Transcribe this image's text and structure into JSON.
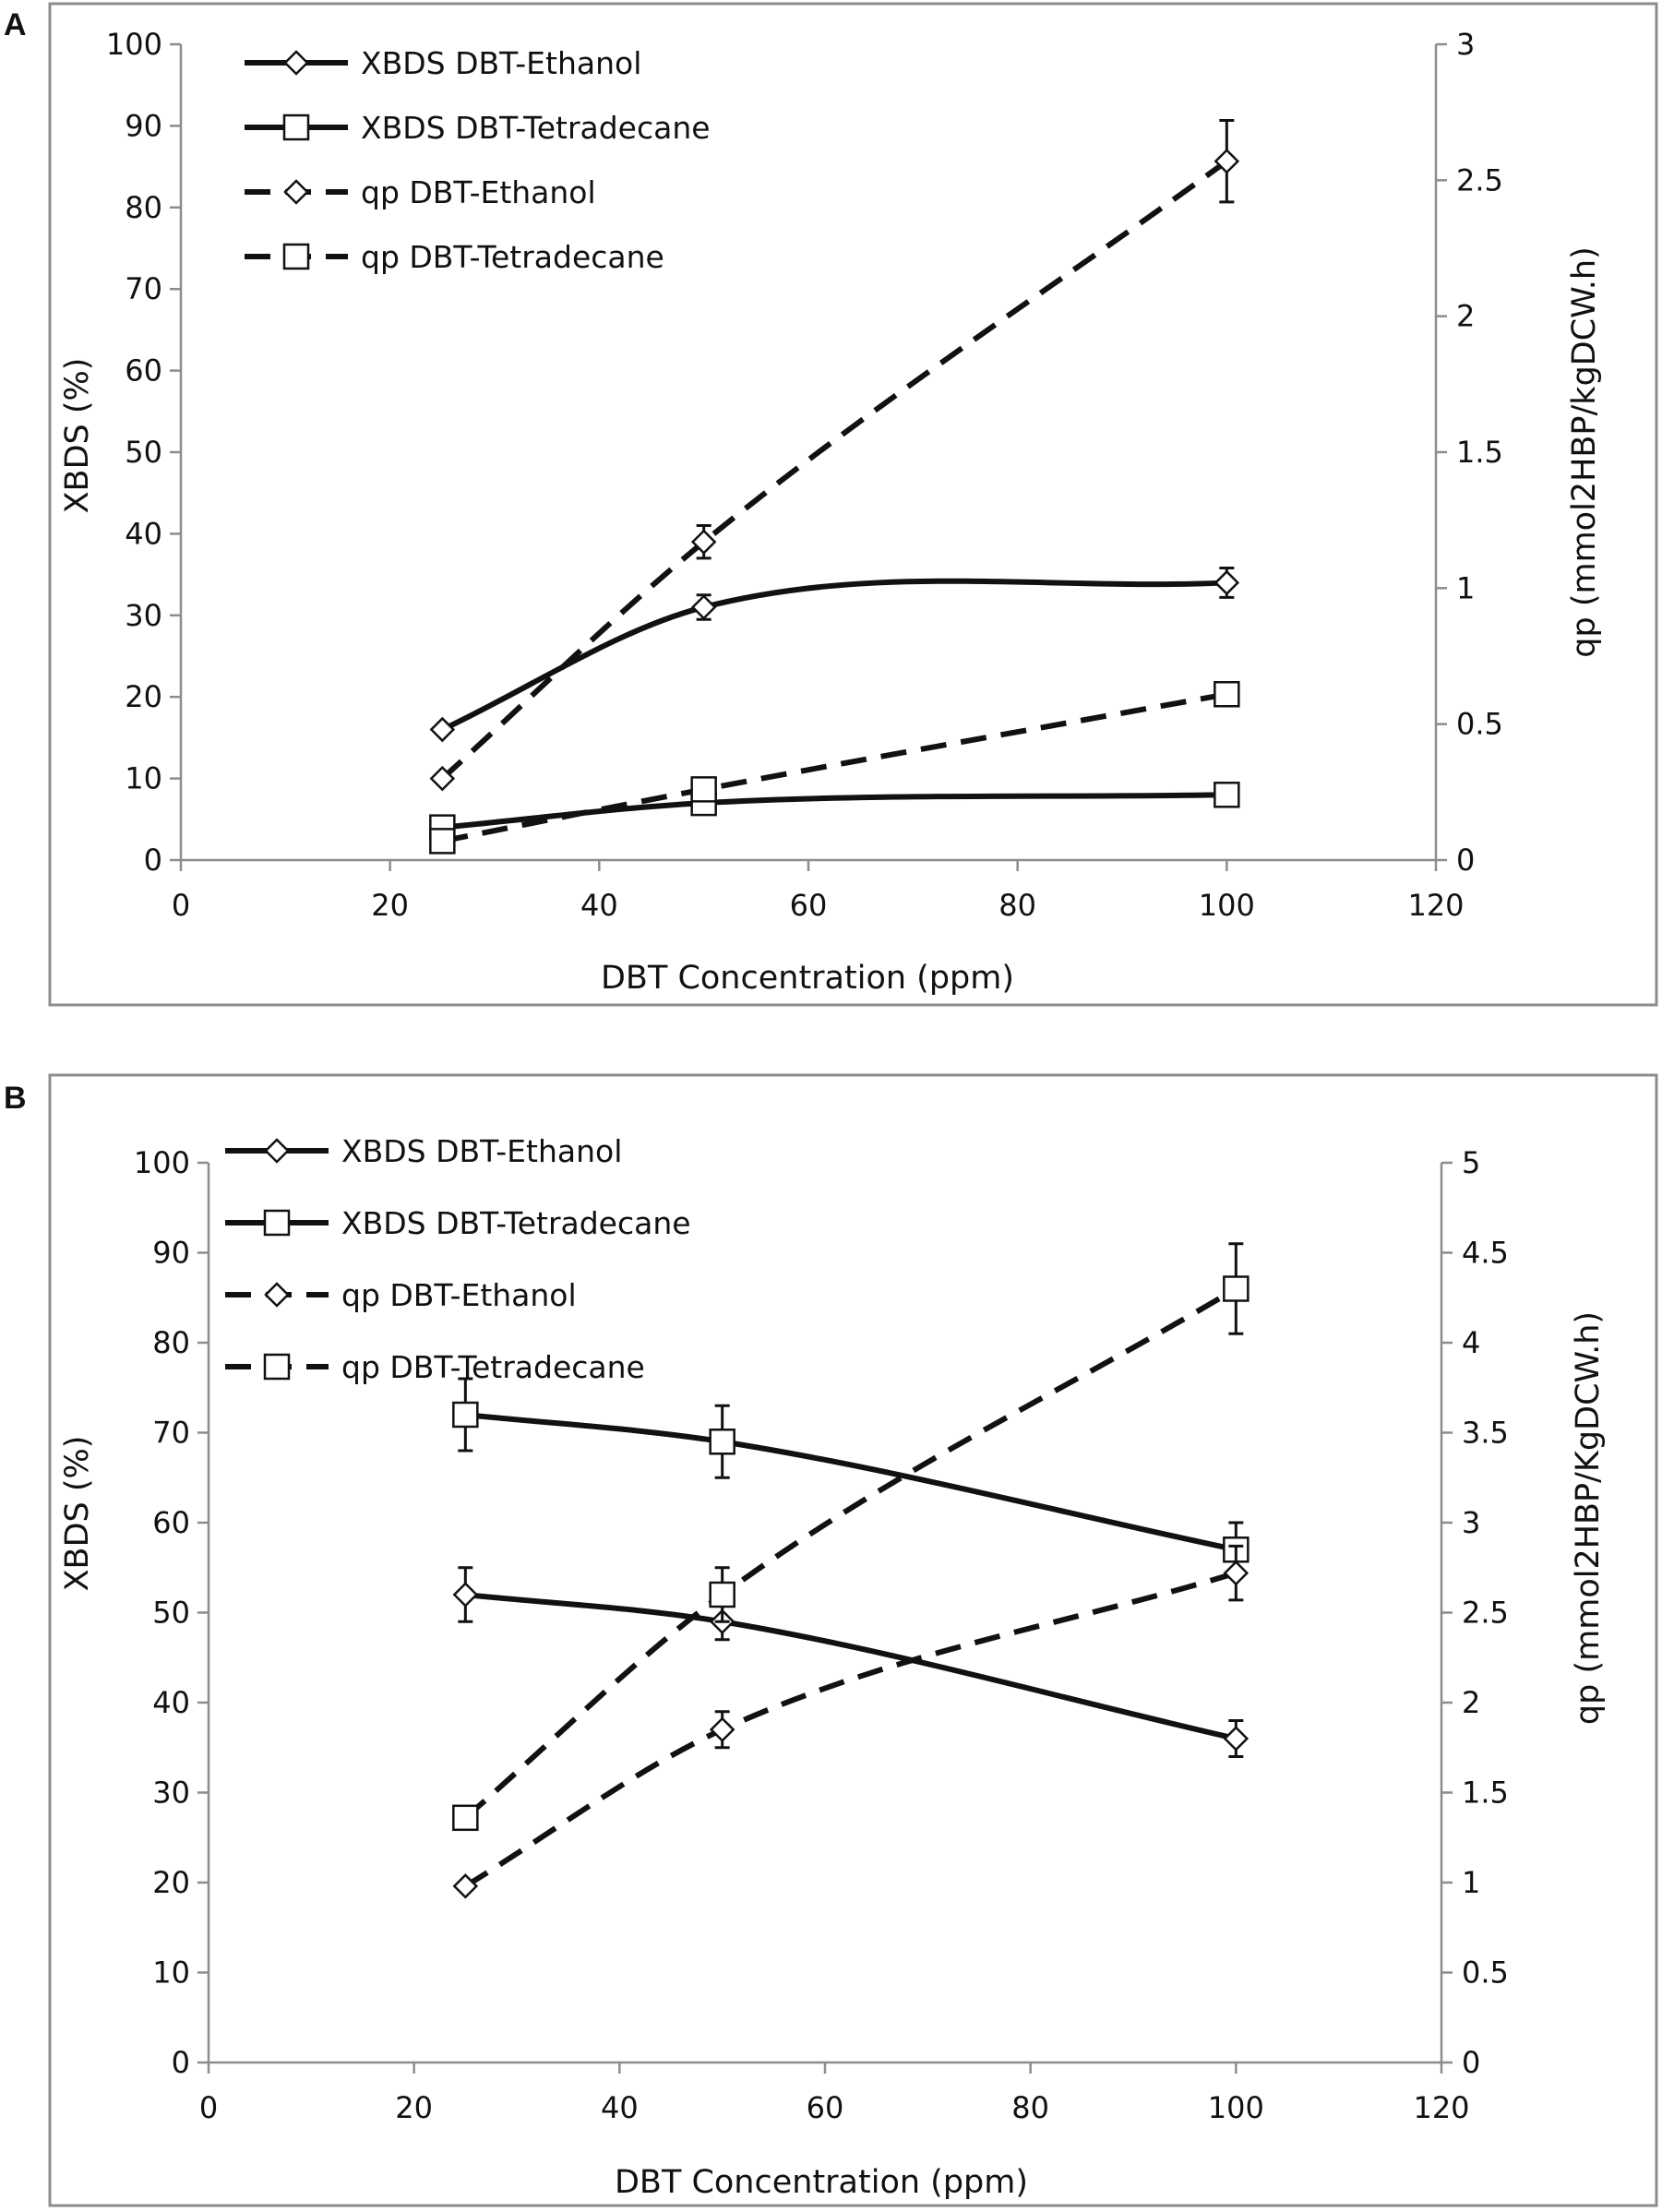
{
  "figure_colors": {
    "line": "#111111",
    "axis": "#8c8c8c",
    "background": "#ffffff"
  },
  "chart_data": [
    {
      "panel_label": "A",
      "type": "line",
      "xlabel": "DBT Concentration (ppm)",
      "ylabel_left": "XBDS (%)",
      "ylabel_right": "qp (mmol2HBP/kgDCW.h)",
      "xlim": [
        0,
        120
      ],
      "xticks": [
        "0",
        "20",
        "40",
        "60",
        "80",
        "100",
        "120"
      ],
      "ylim_left": [
        0,
        100
      ],
      "yticks_left": [
        "0",
        "10",
        "20",
        "30",
        "40",
        "50",
        "60",
        "70",
        "80",
        "90",
        "100"
      ],
      "ylim_right": [
        0,
        3
      ],
      "yticks_right": [
        "0",
        "0.5",
        "1",
        "1.5",
        "2",
        "2.5",
        "3"
      ],
      "x": [
        25,
        50,
        100
      ],
      "legend_position": "top-left",
      "series": [
        {
          "name": "XBDS DBT-Ethanol",
          "axis": "left",
          "style": "solid",
          "marker": "diamond",
          "values": [
            16,
            31,
            34
          ],
          "errors": [
            0,
            1.5,
            1.8
          ]
        },
        {
          "name": "XBDS DBT-Tetradecane",
          "axis": "left",
          "style": "solid",
          "marker": "square",
          "values": [
            4,
            7,
            8
          ],
          "errors": [
            0,
            0,
            0
          ]
        },
        {
          "name": "qp DBT-Ethanol",
          "axis": "right",
          "style": "dashed",
          "marker": "diamond",
          "values": [
            0.3,
            1.17,
            2.57
          ],
          "errors": [
            0,
            0.06,
            0.15
          ]
        },
        {
          "name": "qp DBT-Tetradecane",
          "axis": "right",
          "style": "dashed",
          "marker": "square",
          "values": [
            0.07,
            0.26,
            0.61
          ],
          "errors": [
            0,
            0,
            0.04
          ]
        }
      ]
    },
    {
      "panel_label": "B",
      "type": "line",
      "xlabel": "DBT Concentration (ppm)",
      "ylabel_left": "XBDS (%)",
      "ylabel_right": "qp (mmol2HBP/KgDCW.h)",
      "xlim": [
        0,
        120
      ],
      "xticks": [
        "0",
        "20",
        "40",
        "60",
        "80",
        "100",
        "120"
      ],
      "ylim_left": [
        0,
        100
      ],
      "yticks_left": [
        "0",
        "10",
        "20",
        "30",
        "40",
        "50",
        "60",
        "70",
        "80",
        "90",
        "100"
      ],
      "ylim_right": [
        0,
        5
      ],
      "yticks_right": [
        "0",
        "0.5",
        "1",
        "1.5",
        "2",
        "2.5",
        "3",
        "3.5",
        "4",
        "4.5",
        "5"
      ],
      "x": [
        25,
        50,
        100
      ],
      "legend_position": "top-left",
      "series": [
        {
          "name": "XBDS DBT-Ethanol",
          "axis": "left",
          "style": "solid",
          "marker": "diamond",
          "values": [
            52,
            49,
            36
          ],
          "errors": [
            3,
            2,
            2
          ]
        },
        {
          "name": "XBDS DBT-Tetradecane",
          "axis": "left",
          "style": "solid",
          "marker": "square",
          "values": [
            72,
            69,
            57
          ],
          "errors": [
            4,
            4,
            3
          ]
        },
        {
          "name": "qp DBT-Ethanol",
          "axis": "right",
          "style": "dashed",
          "marker": "diamond",
          "values": [
            0.98,
            1.85,
            2.72
          ],
          "errors": [
            0,
            0.1,
            0.15
          ]
        },
        {
          "name": "qp DBT-Tetradecane",
          "axis": "right",
          "style": "dashed",
          "marker": "square",
          "values": [
            1.36,
            2.6,
            4.3
          ],
          "errors": [
            0,
            0.15,
            0.25
          ]
        }
      ]
    }
  ]
}
